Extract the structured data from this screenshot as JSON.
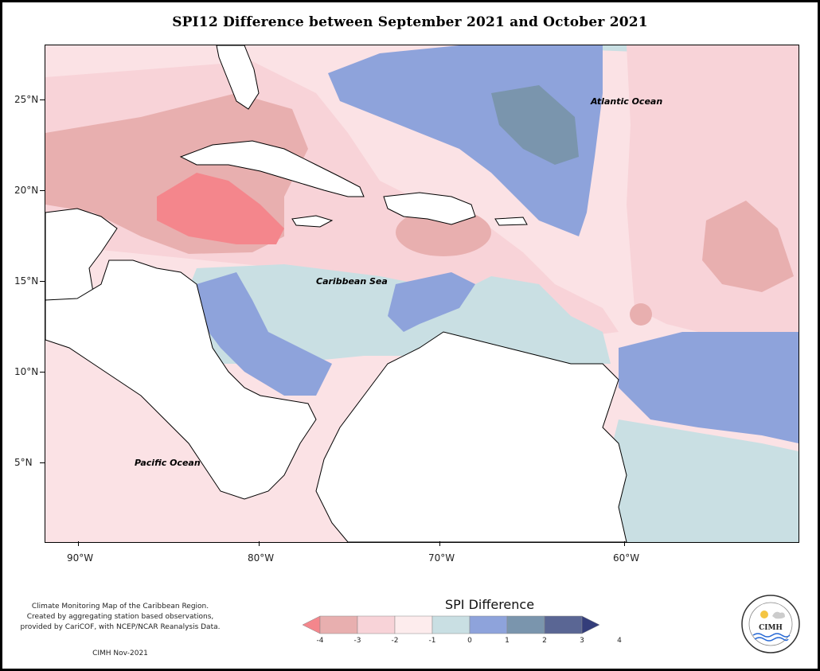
{
  "title": "SPI12 Difference between September 2021 and October 2021",
  "axes": {
    "lat_labels": [
      "25°N",
      "20°N",
      "15°N",
      "10°N",
      "5°N"
    ],
    "lon_labels": [
      "90°W",
      "80°W",
      "70°W",
      "60°W"
    ]
  },
  "labels": {
    "atlantic": "Atlantic Ocean",
    "caribbean": "Caribbean Sea",
    "pacific": "Pacific Ocean"
  },
  "credit": {
    "line1": "Climate Monitoring Map of the Caribbean Region.",
    "line2": "Created by aggregating station based observations,",
    "line3": "provided by CariCOF, with NCEP/NCAR Reanalysis Data.",
    "date": "CIMH Nov-2021"
  },
  "legend": {
    "title": "SPI Difference",
    "ticks": [
      "-4",
      "-3",
      "-2",
      "-1",
      "0",
      "1",
      "2",
      "3",
      "4"
    ],
    "colors": [
      "#f4868c",
      "#e8afaf",
      "#f8d3d8",
      "#fdeced",
      "#c9dfe3",
      "#8ea3db",
      "#7a95ad",
      "#5a6694",
      "#343d7a"
    ]
  },
  "logo": {
    "text": "CIMH"
  }
}
